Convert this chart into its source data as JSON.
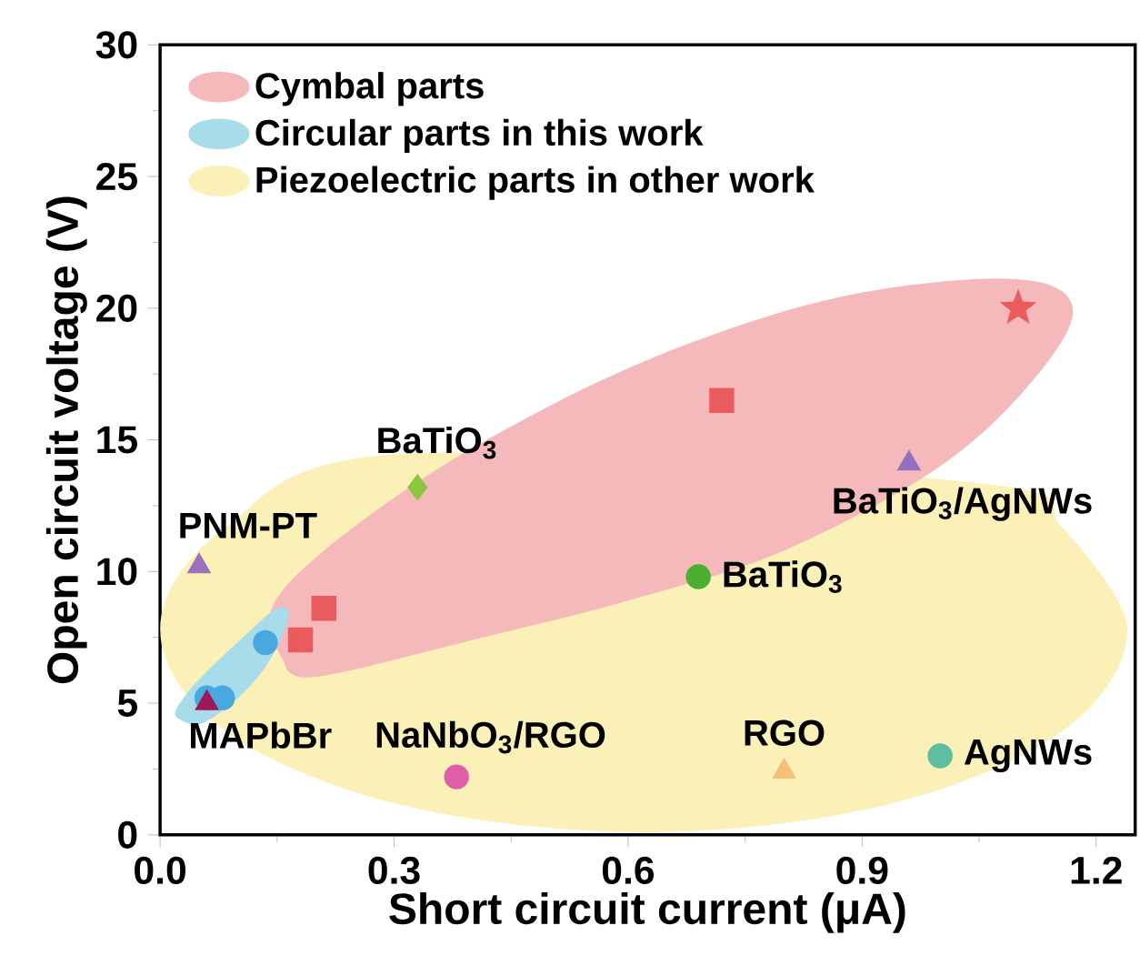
{
  "chart_data": {
    "type": "scatter",
    "xlabel": "Short circuit current (μA)",
    "ylabel": "Open circuit voltage (V)",
    "xlim": [
      0,
      1.25
    ],
    "ylim": [
      0,
      30
    ],
    "xticks": [
      {
        "value": 0,
        "label": "0.0"
      },
      0.3,
      0.6,
      0.9,
      1.2
    ],
    "yticks": [
      0,
      5,
      10,
      15,
      20,
      25,
      30
    ],
    "grid": false,
    "legend": "top left",
    "series": [
      {
        "name": "Cymbal parts",
        "type": "area",
        "color": "#f5b9bb",
        "x": [
          0.16,
          0.2,
          0.4,
          0.6,
          0.8,
          1.0,
          1.12,
          1.17,
          1.1,
          0.9,
          0.7,
          0.5,
          0.3,
          0.15
        ],
        "values": [
          6.5,
          6.0,
          7.4,
          8.9,
          10.8,
          14.0,
          17.3,
          20.0,
          21.1,
          20.6,
          18.9,
          16.3,
          12.8,
          9.0
        ]
      },
      {
        "name": "Circular parts in this work",
        "type": "area",
        "color": "#a8dcea",
        "x": [
          0.02,
          0.05,
          0.1,
          0.14,
          0.165,
          0.15,
          0.11,
          0.06,
          0.03
        ],
        "values": [
          4.5,
          4.2,
          5.2,
          6.6,
          8.3,
          8.6,
          7.6,
          6.2,
          5.2
        ]
      },
      {
        "name": "Piezoelectric parts in other work",
        "type": "area",
        "color": "#faf0b8",
        "x": [
          1.24,
          1.157,
          1.05,
          0.31,
          0.083,
          0.0,
          0.083,
          0.31,
          0.62,
          0.93,
          1.157
        ],
        "values": [
          7.8,
          11.65,
          13.35,
          14.47,
          11.65,
          7.8,
          3.95,
          1.13,
          0.1,
          1.13,
          3.95
        ]
      },
      {
        "marker": "star",
        "color": "#ea5b5e",
        "x": [
          1.1
        ],
        "values": [
          20.0
        ]
      },
      {
        "marker": "square",
        "color": "#ea5b5e",
        "x": [
          0.72,
          0.21,
          0.18
        ],
        "values": [
          16.5,
          8.6,
          7.4
        ]
      },
      {
        "marker": "circle",
        "color": "#4aa8e0",
        "x": [
          0.135,
          0.08,
          0.06
        ],
        "values": [
          7.3,
          5.2,
          5.2
        ]
      },
      {
        "marker": "triangle",
        "color": "#a0185a",
        "x": [
          0.06
        ],
        "values": [
          5.0
        ]
      },
      {
        "marker": "triangle",
        "color": "#a070c0",
        "x": [
          0.05
        ],
        "values": [
          10.2
        ]
      },
      {
        "marker": "diamond",
        "color": "#8cc63f",
        "x": [
          0.33
        ],
        "values": [
          13.2
        ]
      },
      {
        "marker": "triangle",
        "color": "#9370c0",
        "x": [
          0.96
        ],
        "values": [
          14.1
        ]
      },
      {
        "marker": "circle",
        "color": "#4caf30",
        "x": [
          0.69
        ],
        "values": [
          9.8
        ]
      },
      {
        "marker": "circle",
        "color": "#e060a8",
        "x": [
          0.38
        ],
        "values": [
          2.2
        ]
      },
      {
        "marker": "triangle",
        "color": "#f5c07a",
        "x": [
          0.8
        ],
        "values": [
          2.4
        ]
      },
      {
        "marker": "circle",
        "color": "#5cc0a0",
        "x": [
          1.0
        ],
        "values": [
          3.0
        ]
      }
    ],
    "annotations": [
      {
        "text": "PNM-PT",
        "x": 0.05,
        "y": 10.2
      },
      {
        "text": "BaTiO$_{3}$",
        "x": 0.33,
        "y": 13.2
      },
      {
        "text": "BaTiO$_{3}$/AgNWs",
        "x": 0.96,
        "y": 14.1
      },
      {
        "text": "BaTiO$_{3}$",
        "x": 0.69,
        "y": 9.8
      },
      {
        "text": "MAPbBr",
        "x": 0.06,
        "y": 5.0
      },
      {
        "text": "NaNbO$_{3}$/RGO",
        "x": 0.38,
        "y": 2.2
      },
      {
        "text": "RGO",
        "x": 0.8,
        "y": 2.4
      },
      {
        "text": "AgNWs",
        "x": 1.0,
        "y": 3.0
      }
    ]
  }
}
